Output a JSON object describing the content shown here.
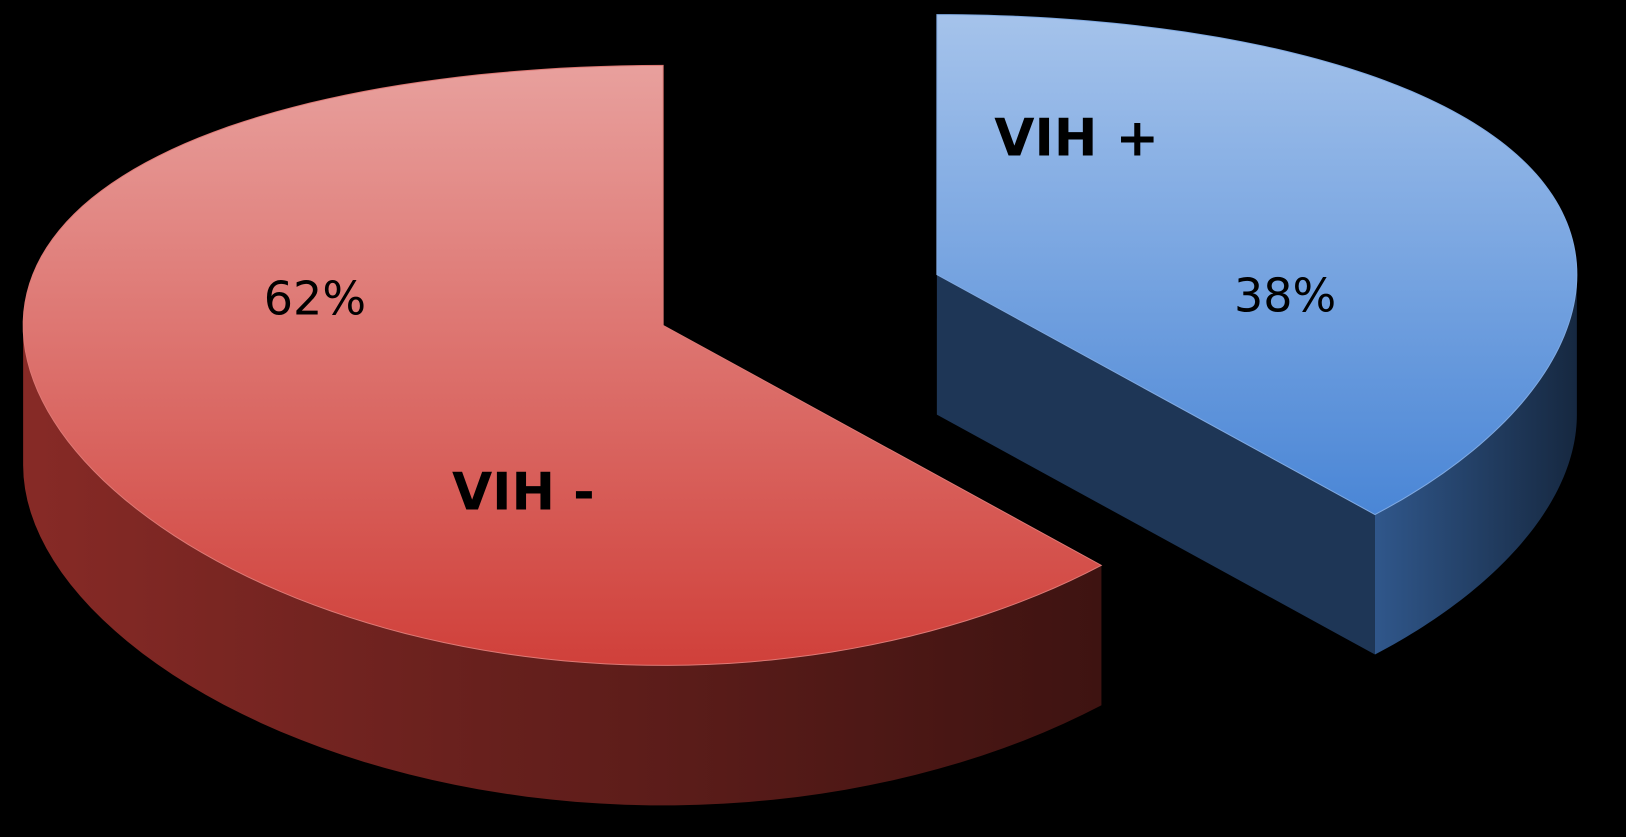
{
  "chart_data": {
    "type": "pie",
    "categories": [
      "VIH +",
      "VIH -"
    ],
    "values": [
      38,
      62
    ],
    "value_labels": [
      "38%",
      "62%"
    ],
    "colors": [
      "#4a86d6",
      "#d0403a"
    ]
  }
}
